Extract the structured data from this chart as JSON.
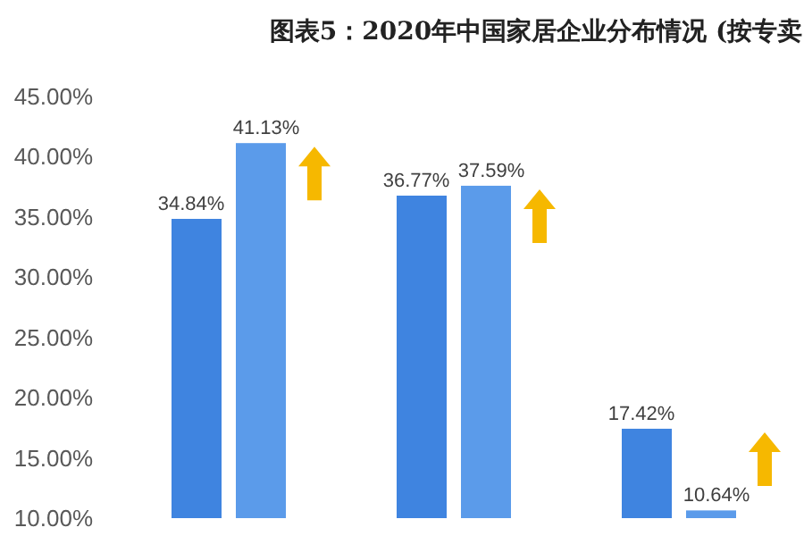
{
  "chart_data": {
    "type": "bar",
    "title": "图表5：2020年中国家居企业分布情况 (按专卖",
    "categories": [
      null,
      null,
      null
    ],
    "series": [
      {
        "color": "#3f84e0",
        "values": [
          34.84,
          36.77,
          17.42
        ],
        "value_labels": [
          "34.84%",
          "36.77%",
          "17.42%"
        ]
      },
      {
        "color": "#5b9bea",
        "values": [
          41.13,
          37.59,
          10.64
        ],
        "value_labels": [
          "41.13%",
          "37.59%",
          "10.64%"
        ]
      }
    ],
    "ylim": [
      10,
      45
    ],
    "yticks": [
      {
        "value": 10,
        "label": "10.00%"
      },
      {
        "value": 15,
        "label": "15.00%"
      },
      {
        "value": 20,
        "label": "20.00%"
      },
      {
        "value": 25,
        "label": "25.00%"
      },
      {
        "value": 30,
        "label": "30.00%"
      },
      {
        "value": 35,
        "label": "35.00%"
      },
      {
        "value": 40,
        "label": "40.00%"
      },
      {
        "value": 45,
        "label": "45.00%"
      }
    ],
    "grid": false
  }
}
